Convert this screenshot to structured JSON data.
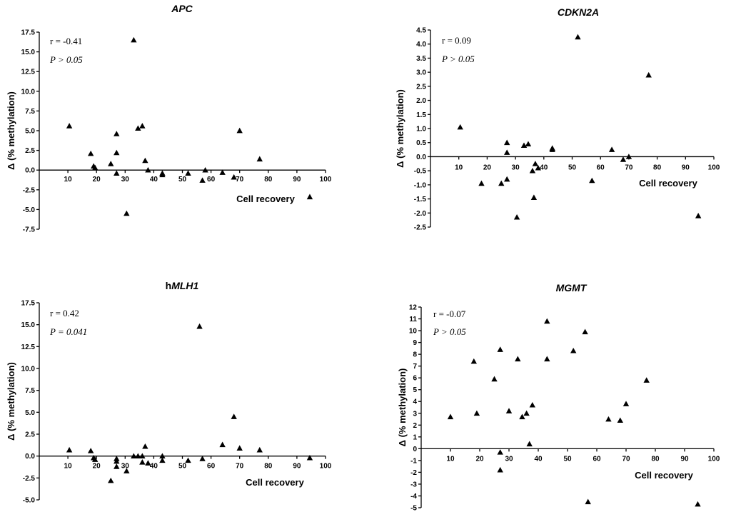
{
  "chart_data": [
    {
      "type": "scatter",
      "title": "APC",
      "xlabel": "Cell recovery",
      "ylabel": "Δ (% methylation)",
      "xlim": [
        0,
        100
      ],
      "ylim": [
        -7.5,
        17.5
      ],
      "xticks": [
        "10",
        "20",
        "30",
        "40",
        "50",
        "60",
        "70",
        "80",
        "90",
        "100"
      ],
      "yticks": [
        "17.5",
        "15.0",
        "12.5",
        "10.0",
        "7.5",
        "5.0",
        "2.5",
        "0.0",
        "-2.5",
        "-5.0",
        "-7.5"
      ],
      "stat_r": "r = -0.41",
      "stat_p": "P > 0.05",
      "points": [
        [
          10.5,
          5.6
        ],
        [
          18,
          2.1
        ],
        [
          19,
          0.5
        ],
        [
          19.5,
          0.3
        ],
        [
          25,
          0.8
        ],
        [
          27,
          4.6
        ],
        [
          27,
          2.2
        ],
        [
          27,
          -0.4
        ],
        [
          30.5,
          -5.5
        ],
        [
          33,
          16.5
        ],
        [
          34.5,
          5.3
        ],
        [
          36,
          5.6
        ],
        [
          37,
          1.2
        ],
        [
          38,
          0
        ],
        [
          43,
          -0.6
        ],
        [
          43,
          -0.4
        ],
        [
          52,
          -0.4
        ],
        [
          57,
          -1.3
        ],
        [
          58,
          0
        ],
        [
          64,
          -0.3
        ],
        [
          68,
          -0.9
        ],
        [
          70,
          5
        ],
        [
          77,
          1.4
        ],
        [
          94.5,
          -3.4
        ]
      ]
    },
    {
      "type": "scatter",
      "title": "CDKN2A",
      "xlabel": "Cell recovery",
      "ylabel": "Δ (% methylation)",
      "xlim": [
        0,
        100
      ],
      "ylim": [
        -2.5,
        4.5
      ],
      "xticks": [
        "10",
        "20",
        "30",
        "40",
        "50",
        "60",
        "70",
        "80",
        "90",
        "100"
      ],
      "yticks": [
        "4.5",
        "4.0",
        "3.5",
        "3.0",
        "2.5",
        "2.0",
        "1.5",
        "1.0",
        "0.5",
        "0.0",
        "-0.5",
        "-1.0",
        "-1.5",
        "-2.0",
        "-2.5"
      ],
      "stat_r": "r = 0.09",
      "stat_p": "P > 0.05",
      "points": [
        [
          10.5,
          1.05
        ],
        [
          18,
          -0.95
        ],
        [
          25,
          -0.95
        ],
        [
          27,
          0.5
        ],
        [
          27,
          0.15
        ],
        [
          27,
          -0.8
        ],
        [
          30.5,
          -2.15
        ],
        [
          33,
          0.4
        ],
        [
          34.5,
          0.45
        ],
        [
          36,
          -0.5
        ],
        [
          36.5,
          -1.45
        ],
        [
          37,
          -0.25
        ],
        [
          38,
          -0.4
        ],
        [
          43,
          0.3
        ],
        [
          43,
          0.25
        ],
        [
          52,
          4.25
        ],
        [
          57,
          -0.85
        ],
        [
          64,
          0.25
        ],
        [
          68,
          -0.1
        ],
        [
          70,
          0
        ],
        [
          77,
          2.9
        ],
        [
          94.5,
          -2.1
        ]
      ]
    },
    {
      "type": "scatter",
      "title": "hMLH1",
      "title_prefix": "h",
      "title_main": "MLH1",
      "xlabel": "Cell recovery",
      "ylabel": "Δ (% methylation)",
      "xlim": [
        0,
        100
      ],
      "ylim": [
        -5,
        17.5
      ],
      "xticks": [
        "10",
        "20",
        "30",
        "40",
        "50",
        "60",
        "70",
        "80",
        "90",
        "100"
      ],
      "yticks": [
        "17.5",
        "15.0",
        "12.5",
        "10.0",
        "7.5",
        "5.0",
        "2.5",
        "0.0",
        "-2.5",
        "-5.0"
      ],
      "stat_r": "r = 0.42",
      "stat_p": "P = 0.041",
      "points": [
        [
          10.5,
          0.7
        ],
        [
          18,
          0.6
        ],
        [
          19,
          -0.2
        ],
        [
          19.5,
          -0.4
        ],
        [
          25,
          -2.8
        ],
        [
          27,
          -0.3
        ],
        [
          27,
          -0.6
        ],
        [
          27,
          -1.2
        ],
        [
          30.5,
          -1.7
        ],
        [
          33,
          0
        ],
        [
          34.5,
          0
        ],
        [
          36,
          0
        ],
        [
          36,
          -0.7
        ],
        [
          37,
          1.1
        ],
        [
          38,
          -0.8
        ],
        [
          43,
          0
        ],
        [
          43,
          -0.5
        ],
        [
          52,
          -0.5
        ],
        [
          56,
          14.8
        ],
        [
          57,
          -0.3
        ],
        [
          64,
          1.3
        ],
        [
          68,
          4.5
        ],
        [
          70,
          0.9
        ],
        [
          77,
          0.7
        ],
        [
          94.5,
          -0.2
        ]
      ]
    },
    {
      "type": "scatter",
      "title": "MGMT",
      "xlabel": "Cell recovery",
      "ylabel": "Δ (% methylation)",
      "xlim": [
        0,
        100
      ],
      "ylim": [
        -5,
        12
      ],
      "xticks": [
        "10",
        "20",
        "30",
        "40",
        "50",
        "60",
        "70",
        "80",
        "90",
        "100"
      ],
      "yticks": [
        "12",
        "11",
        "10",
        "9",
        "8",
        "7",
        "6",
        "5",
        "4",
        "3",
        "2",
        "1",
        "0",
        "-1",
        "-2",
        "-3",
        "-4",
        "-5"
      ],
      "stat_r": "r = -0.07",
      "stat_p": "P > 0.05",
      "points": [
        [
          10,
          2.7
        ],
        [
          18,
          7.4
        ],
        [
          19,
          3.0
        ],
        [
          25,
          5.9
        ],
        [
          27,
          8.4
        ],
        [
          27,
          -0.3
        ],
        [
          27,
          -1.8
        ],
        [
          30,
          3.2
        ],
        [
          33,
          7.6
        ],
        [
          34.5,
          2.7
        ],
        [
          36,
          3.0
        ],
        [
          37,
          0.4
        ],
        [
          38,
          3.7
        ],
        [
          43,
          10.8
        ],
        [
          43,
          7.6
        ],
        [
          52,
          8.3
        ],
        [
          56,
          9.9
        ],
        [
          57,
          -4.5
        ],
        [
          64,
          2.5
        ],
        [
          68,
          2.4
        ],
        [
          70,
          3.8
        ],
        [
          77,
          5.8
        ],
        [
          94.5,
          -4.7
        ]
      ]
    }
  ]
}
